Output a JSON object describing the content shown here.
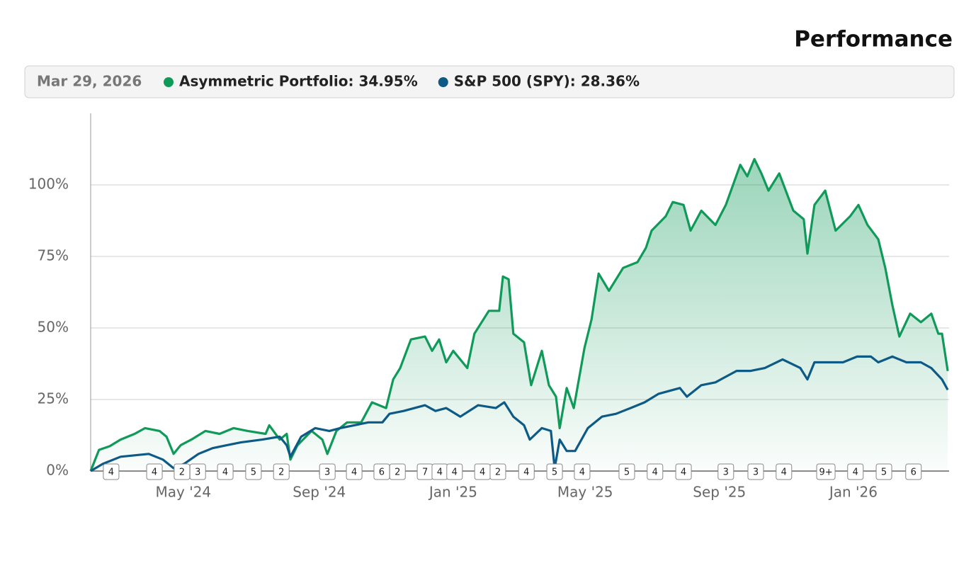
{
  "chart_data": {
    "type": "line",
    "title": "Performance",
    "date_label": "Mar 29, 2026",
    "xlim": [
      0,
      25.57
    ],
    "xticks": [
      {
        "value": 2.76,
        "label": "May '24"
      },
      {
        "value": 6.81,
        "label": "Sep '24"
      },
      {
        "value": 10.8,
        "label": "Jan '25"
      },
      {
        "value": 14.73,
        "label": "May '25"
      },
      {
        "value": 18.73,
        "label": "Sep '25"
      },
      {
        "value": 22.72,
        "label": "Jan '26"
      }
    ],
    "ylim": [
      0,
      125
    ],
    "yticks": [
      {
        "value": 0,
        "label": "0%"
      },
      {
        "value": 25,
        "label": "25%"
      },
      {
        "value": 50,
        "label": "50%"
      },
      {
        "value": 75,
        "label": "75%"
      },
      {
        "value": 100,
        "label": "100%"
      }
    ],
    "grid": true,
    "series": [
      {
        "name": "Asymmetric Portfolio: 34.95%",
        "color": "#109a5a",
        "area": true,
        "x": [
          0,
          0.25,
          0.57,
          0.89,
          1.31,
          1.62,
          2.05,
          2.26,
          2.47,
          2.68,
          3.0,
          3.42,
          3.84,
          4.26,
          4.68,
          5.21,
          5.32,
          5.63,
          5.84,
          5.95,
          6.16,
          6.58,
          6.9,
          7.05,
          7.32,
          7.64,
          8.06,
          8.38,
          8.8,
          9.01,
          9.22,
          9.54,
          9.96,
          10.17,
          10.38,
          10.59,
          10.8,
          11.22,
          11.43,
          11.86,
          12.17,
          12.28,
          12.45,
          12.59,
          12.91,
          13.12,
          13.44,
          13.65,
          13.86,
          13.97,
          14.18,
          14.39,
          14.71,
          14.92,
          15.13,
          15.44,
          15.86,
          16.29,
          16.54,
          16.71,
          17.13,
          17.34,
          17.66,
          17.87,
          18.19,
          18.61,
          18.92,
          19.35,
          19.56,
          19.77,
          19.98,
          20.19,
          20.51,
          20.93,
          21.24,
          21.35,
          21.56,
          21.88,
          22.19,
          22.62,
          22.87,
          23.14,
          23.46,
          23.67,
          23.88,
          24.09,
          24.41,
          24.73,
          25.04,
          25.25,
          25.36,
          25.53
        ],
        "values": [
          0,
          7.4,
          8.7,
          11,
          13,
          15,
          14,
          12,
          6,
          9,
          11,
          14,
          13,
          15,
          14,
          13,
          16,
          11,
          13,
          4,
          9,
          14,
          11,
          6,
          14,
          17,
          17,
          24,
          22,
          32,
          36,
          46,
          47,
          42,
          46,
          38,
          42,
          36,
          48,
          56,
          56,
          68,
          67,
          48,
          45,
          30,
          42,
          30,
          26,
          15,
          29,
          22,
          43,
          53,
          69,
          63,
          71,
          73,
          78,
          84,
          89,
          94,
          93,
          84,
          91,
          86,
          93,
          107,
          103,
          109,
          104,
          98,
          104,
          91,
          88,
          76,
          93,
          98,
          84,
          89,
          93,
          86,
          81,
          71,
          58,
          47,
          55,
          52,
          55,
          48,
          48,
          34.95
        ]
      },
      {
        "name": "S&P 500 (SPY): 28.36%",
        "color": "#0d5a86",
        "x": [
          0,
          0.36,
          0.89,
          1.31,
          1.73,
          2.15,
          2.47,
          2.78,
          3.21,
          3.63,
          4.05,
          4.47,
          5.11,
          5.63,
          5.84,
          5.95,
          6.27,
          6.69,
          7.11,
          7.43,
          7.85,
          8.27,
          8.69,
          8.9,
          9.32,
          9.96,
          10.27,
          10.59,
          11.01,
          11.54,
          12.07,
          12.32,
          12.59,
          12.91,
          13.08,
          13.44,
          13.71,
          13.82,
          13.97,
          14.18,
          14.43,
          14.81,
          15.23,
          15.65,
          16.08,
          16.5,
          16.92,
          17.55,
          17.76,
          18.19,
          18.61,
          19.24,
          19.66,
          20.08,
          20.61,
          21.14,
          21.35,
          21.56,
          21.98,
          22.41,
          22.83,
          23.24,
          23.46,
          23.88,
          24.3,
          24.73,
          25.04,
          25.36,
          25.53
        ],
        "values": [
          0,
          2.5,
          5,
          5.5,
          6,
          4,
          1,
          2.5,
          6,
          8,
          9,
          10,
          11,
          12,
          9,
          5,
          12,
          15,
          14,
          15,
          16,
          17,
          17,
          20,
          21,
          23,
          21,
          22,
          19,
          23,
          22,
          24,
          19,
          16,
          11,
          15,
          14,
          1,
          11,
          7,
          7,
          15,
          19,
          20,
          22,
          24,
          27,
          29,
          26,
          30,
          31,
          35,
          35,
          36,
          39,
          36,
          32,
          38,
          38,
          38,
          40,
          40,
          38,
          40,
          38,
          38,
          36,
          32,
          28.36
        ]
      }
    ],
    "annotations": [
      {
        "x": 0.61,
        "label": "4"
      },
      {
        "x": 1.9,
        "label": "4"
      },
      {
        "x": 2.72,
        "label": "2"
      },
      {
        "x": 3.19,
        "label": "3"
      },
      {
        "x": 4.01,
        "label": "4"
      },
      {
        "x": 4.85,
        "label": "5"
      },
      {
        "x": 5.68,
        "label": "2"
      },
      {
        "x": 7.05,
        "label": "3"
      },
      {
        "x": 7.85,
        "label": "4"
      },
      {
        "x": 8.67,
        "label": "6"
      },
      {
        "x": 9.14,
        "label": "2"
      },
      {
        "x": 9.96,
        "label": "7"
      },
      {
        "x": 10.4,
        "label": "4"
      },
      {
        "x": 10.84,
        "label": "4"
      },
      {
        "x": 11.67,
        "label": "4"
      },
      {
        "x": 12.13,
        "label": "2"
      },
      {
        "x": 12.98,
        "label": "4"
      },
      {
        "x": 13.82,
        "label": "5"
      },
      {
        "x": 14.64,
        "label": "4"
      },
      {
        "x": 15.97,
        "label": "5"
      },
      {
        "x": 16.81,
        "label": "4"
      },
      {
        "x": 17.66,
        "label": "4"
      },
      {
        "x": 18.92,
        "label": "3"
      },
      {
        "x": 19.81,
        "label": "3"
      },
      {
        "x": 20.65,
        "label": "4"
      },
      {
        "x": 21.9,
        "label": "9+"
      },
      {
        "x": 22.78,
        "label": "4"
      },
      {
        "x": 23.63,
        "label": "5"
      },
      {
        "x": 24.51,
        "label": "6"
      }
    ]
  }
}
